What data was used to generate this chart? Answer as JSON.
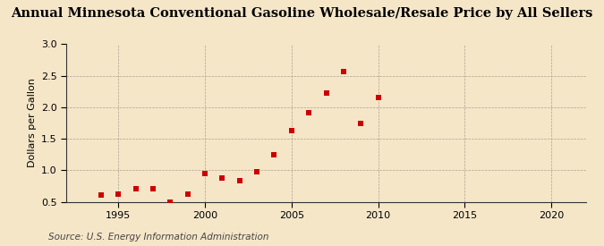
{
  "title": "Annual Minnesota Conventional Gasoline Wholesale/Resale Price by All Sellers",
  "ylabel": "Dollars per Gallon",
  "source": "Source: U.S. Energy Information Administration",
  "background_color": "#f5e6c8",
  "plot_bg_color": "#f5e6c8",
  "years": [
    1994,
    1995,
    1996,
    1997,
    1998,
    1999,
    2000,
    2001,
    2002,
    2003,
    2004,
    2005,
    2006,
    2007,
    2008,
    2009,
    2010
  ],
  "values": [
    0.6,
    0.62,
    0.7,
    0.7,
    0.5,
    0.62,
    0.95,
    0.88,
    0.83,
    0.98,
    1.25,
    1.63,
    1.92,
    2.23,
    2.57,
    1.74,
    2.15
  ],
  "marker_color": "#cc0000",
  "marker_size": 16,
  "xlim": [
    1992,
    2022
  ],
  "ylim": [
    0.5,
    3.0
  ],
  "xticks": [
    1995,
    2000,
    2005,
    2010,
    2015,
    2020
  ],
  "yticks": [
    0.5,
    1.0,
    1.5,
    2.0,
    2.5,
    3.0
  ],
  "grid_color": "#b0a090",
  "title_fontsize": 10.5,
  "axis_label_fontsize": 8,
  "tick_fontsize": 8,
  "source_fontsize": 7.5
}
